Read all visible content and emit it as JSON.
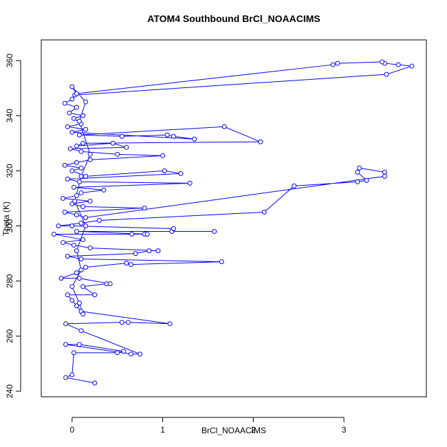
{
  "chart_data": {
    "type": "line-points",
    "title": "ATOM4 Southbound BrCl_NOAACIMS",
    "x_label": "BrCl_NOAACIMS",
    "y_label": "Theta (K)",
    "color": "#0000ff",
    "xlim": [
      -0.34,
      3.91
    ],
    "ylim": [
      238,
      367.5
    ],
    "xticks": [
      0,
      1,
      2,
      3
    ],
    "yticks": [
      240,
      260,
      280,
      300,
      320,
      340,
      360
    ],
    "x": [
      0.25,
      -0.07,
      0.0,
      0.02,
      0.5,
      0.57,
      0.08,
      -0.07,
      0.65,
      0.75,
      0.1,
      -0.07,
      0.55,
      0.62,
      1.08,
      0.1,
      0.05,
      0.0,
      -0.05,
      0.25,
      0.12,
      0.38,
      0.42,
      0.08,
      -0.12,
      0.05,
      0.15,
      0.6,
      0.65,
      1.65,
      0.1,
      -0.05,
      0.7,
      0.85,
      0.95,
      0.2,
      0.02,
      -0.1,
      0.12,
      -0.2,
      0.66,
      0.8,
      0.83,
      0.05,
      1.57,
      1.1,
      1.12,
      0.0,
      -0.15,
      0.1,
      0.3,
      2.12,
      2.45,
      3.15,
      3.25,
      3.15,
      3.17,
      3.45,
      3.45,
      0.15,
      0.05,
      -0.08,
      0.8,
      0.12,
      0.0,
      0.2,
      -0.1,
      0.05,
      0.1,
      0.35,
      0.02,
      1.3,
      0.08,
      -0.05,
      1.2,
      1.02,
      0.15,
      0.0,
      0.1,
      -0.08,
      0.05,
      0.2,
      1.0,
      0.5,
      0.1,
      -0.02,
      0.6,
      0.45,
      0.05,
      0.12,
      2.08,
      1.68,
      0.08,
      0.55,
      1.05,
      1.12,
      1.35,
      0.0,
      0.15,
      -0.05,
      0.1,
      0.02,
      0.12,
      -0.03,
      0.05,
      -0.08,
      0.0,
      0.03,
      3.47,
      3.75,
      3.6,
      3.45,
      3.42,
      2.93,
      2.88,
      0.05,
      0.0,
      0.15,
      0.08,
      0.2,
      0.1,
      0.03,
      0.15,
      0.05,
      0.1,
      0.0,
      0.08,
      0.12
    ],
    "values": [
      243,
      245,
      246,
      254,
      254,
      254.5,
      257,
      257,
      253.5,
      253.5,
      262,
      264.5,
      265,
      265,
      264.5,
      269,
      271,
      273,
      275,
      275,
      278,
      279,
      279,
      281,
      281,
      283,
      285,
      286.5,
      286,
      287,
      288,
      289,
      290,
      291,
      291,
      292,
      293,
      294,
      295,
      297,
      297,
      297,
      297,
      298,
      298,
      298,
      299,
      300,
      300,
      301,
      302,
      305,
      314.5,
      316,
      316.5,
      319.5,
      321,
      319.5,
      318,
      303,
      304,
      305,
      306.5,
      307,
      308,
      309,
      310,
      311,
      312,
      313,
      314,
      315.5,
      316,
      317,
      319,
      320,
      318,
      320,
      321,
      322,
      323,
      324,
      325.5,
      326,
      327,
      328,
      328.5,
      330,
      329,
      330,
      330.5,
      336,
      333,
      332.5,
      333,
      332.5,
      331.5,
      334,
      335,
      336,
      337,
      339,
      340,
      341,
      343,
      344.5,
      346,
      347.5,
      355,
      358,
      358.5,
      359,
      359.5,
      359,
      358.5,
      348,
      350.5,
      345,
      338,
      326,
      318,
      309,
      300,
      291,
      284,
      278,
      272,
      268
    ]
  }
}
